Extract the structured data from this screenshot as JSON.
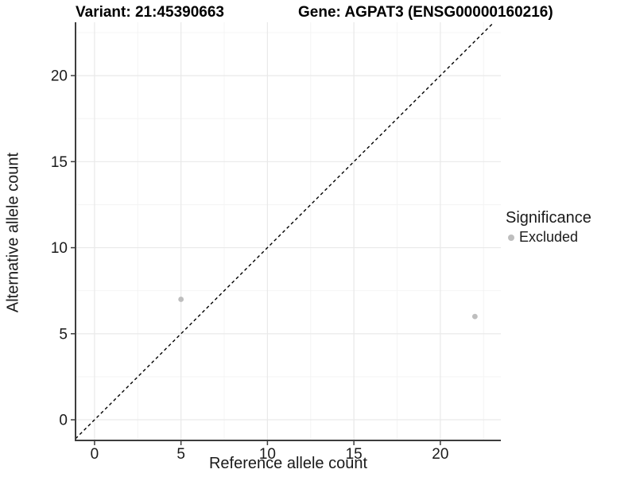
{
  "header": {
    "variant_title": "Variant: 21:45390663",
    "gene_title": "Gene: AGPAT3 (ENSG00000160216)"
  },
  "chart_data": {
    "type": "scatter",
    "xlabel": "Reference allele count",
    "ylabel": "Alternative allele count",
    "xlim": [
      -1.1,
      23.5
    ],
    "ylim": [
      -1.2,
      23.1
    ],
    "x_ticks": [
      0,
      5,
      10,
      15,
      20
    ],
    "y_ticks": [
      0,
      5,
      10,
      15,
      20
    ],
    "x_minor_ticks": [
      2.5,
      7.5,
      12.5,
      17.5,
      22.5
    ],
    "y_minor_ticks": [
      2.5,
      7.5,
      12.5,
      17.5,
      22.5
    ],
    "grid": true,
    "reference_line": {
      "type": "identity",
      "slope": 1,
      "intercept": 0,
      "style": "dashed",
      "color": "#000000"
    },
    "series": [
      {
        "name": "Excluded",
        "color": "#bebebe",
        "marker": "circle",
        "points": [
          [
            5,
            7
          ],
          [
            22,
            6
          ]
        ]
      }
    ],
    "legend": {
      "title": "Significance",
      "position": "right",
      "entries": [
        {
          "label": "Excluded",
          "color": "#bebebe",
          "marker": "circle"
        }
      ]
    }
  },
  "style": {
    "axis_line_color": "#3d3d3d",
    "grid_major_color": "#e9e9e9",
    "grid_minor_color": "#f4f4f4",
    "tick_mark_color": "#3d3d3d",
    "tick_label_color": "#1a1a1a",
    "point_color": "#bebebe",
    "background_color": "#ffffff"
  }
}
